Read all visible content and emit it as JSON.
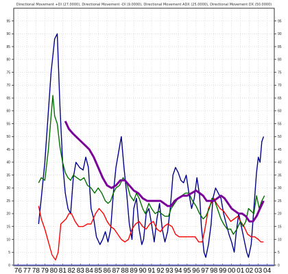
{
  "chart_data": {
    "type": "line",
    "title": "Directional Movement +DI (27.0000), Directional Movement -DI (9.0000), Directional Movement ADX (25.0000), Directional Movement DX (50.0000)",
    "x_ticks": [
      "76",
      "77",
      "78",
      "79",
      "80",
      "81",
      "82",
      "83",
      "84",
      "85",
      "86",
      "87",
      "88",
      "89",
      "90",
      "91",
      "92",
      "93",
      "94",
      "95",
      "96",
      "97",
      "98",
      "99",
      "00",
      "01",
      "02",
      "03",
      "04"
    ],
    "y_ticks": [
      0,
      5,
      10,
      15,
      20,
      25,
      30,
      35,
      40,
      45,
      50,
      55,
      60,
      65,
      70,
      75,
      80,
      85,
      90,
      95
    ],
    "ylim": [
      0,
      97
    ],
    "xlim": [
      1975.5,
      2004.8
    ],
    "grid": true,
    "series": [
      {
        "color": "#00008b",
        "points": [
          [
            1978.3,
            16
          ],
          [
            1978.6,
            26
          ],
          [
            1979.0,
            40
          ],
          [
            1979.4,
            60
          ],
          [
            1979.7,
            75
          ],
          [
            1980.1,
            88
          ],
          [
            1980.4,
            90
          ],
          [
            1980.7,
            62
          ],
          [
            1981.0,
            40
          ],
          [
            1981.3,
            28
          ],
          [
            1981.6,
            22
          ],
          [
            1981.9,
            20
          ],
          [
            1982.2,
            34
          ],
          [
            1982.5,
            40
          ],
          [
            1982.9,
            38
          ],
          [
            1983.3,
            37
          ],
          [
            1983.6,
            42
          ],
          [
            1983.9,
            38
          ],
          [
            1984.2,
            22
          ],
          [
            1984.5,
            18
          ],
          [
            1984.8,
            11
          ],
          [
            1985.2,
            8
          ],
          [
            1985.5,
            10
          ],
          [
            1985.8,
            13
          ],
          [
            1986.1,
            9
          ],
          [
            1986.4,
            14
          ],
          [
            1986.7,
            28
          ],
          [
            1987.0,
            38
          ],
          [
            1987.3,
            44
          ],
          [
            1987.6,
            50
          ],
          [
            1987.9,
            38
          ],
          [
            1988.2,
            28
          ],
          [
            1988.5,
            16
          ],
          [
            1988.8,
            10
          ],
          [
            1989.0,
            22
          ],
          [
            1989.3,
            26
          ],
          [
            1989.6,
            14
          ],
          [
            1989.9,
            8
          ],
          [
            1990.1,
            10
          ],
          [
            1990.4,
            20
          ],
          [
            1990.7,
            22
          ],
          [
            1991.0,
            16
          ],
          [
            1991.3,
            9
          ],
          [
            1991.6,
            18
          ],
          [
            1991.9,
            24
          ],
          [
            1992.2,
            14
          ],
          [
            1992.5,
            9
          ],
          [
            1992.8,
            13
          ],
          [
            1993.1,
            22
          ],
          [
            1993.4,
            35
          ],
          [
            1993.7,
            38
          ],
          [
            1994.0,
            36
          ],
          [
            1994.3,
            33
          ],
          [
            1994.6,
            32
          ],
          [
            1994.9,
            35
          ],
          [
            1995.2,
            28
          ],
          [
            1995.5,
            22
          ],
          [
            1995.8,
            26
          ],
          [
            1996.1,
            34
          ],
          [
            1996.4,
            27
          ],
          [
            1996.6,
            15
          ],
          [
            1996.9,
            5
          ],
          [
            1997.1,
            3
          ],
          [
            1997.4,
            8
          ],
          [
            1997.7,
            16
          ],
          [
            1997.9,
            26
          ],
          [
            1998.2,
            30
          ],
          [
            1998.5,
            28
          ],
          [
            1998.8,
            26
          ],
          [
            1999.1,
            20
          ],
          [
            1999.4,
            16
          ],
          [
            1999.7,
            12
          ],
          [
            2000.0,
            9
          ],
          [
            2000.3,
            5
          ],
          [
            2000.5,
            12
          ],
          [
            2000.8,
            20
          ],
          [
            2001.1,
            15
          ],
          [
            2001.4,
            10
          ],
          [
            2001.7,
            5
          ],
          [
            2001.9,
            3
          ],
          [
            2002.2,
            8
          ],
          [
            2002.5,
            22
          ],
          [
            2002.8,
            36
          ],
          [
            2003.0,
            42
          ],
          [
            2003.2,
            40
          ],
          [
            2003.4,
            48
          ],
          [
            2003.6,
            50
          ]
        ]
      },
      {
        "color": "#ff0000",
        "points": [
          [
            1978.3,
            23
          ],
          [
            1978.6,
            18
          ],
          [
            1979.0,
            14
          ],
          [
            1979.4,
            9
          ],
          [
            1979.8,
            4
          ],
          [
            1980.2,
            2
          ],
          [
            1980.5,
            5
          ],
          [
            1980.8,
            16
          ],
          [
            1981.1,
            17
          ],
          [
            1981.4,
            18
          ],
          [
            1981.7,
            20
          ],
          [
            1982.0,
            20
          ],
          [
            1982.4,
            17
          ],
          [
            1982.8,
            15
          ],
          [
            1983.3,
            15
          ],
          [
            1983.8,
            16
          ],
          [
            1984.2,
            16
          ],
          [
            1984.7,
            20
          ],
          [
            1985.1,
            22
          ],
          [
            1985.6,
            20
          ],
          [
            1986.0,
            17
          ],
          [
            1986.4,
            15
          ],
          [
            1986.8,
            14
          ],
          [
            1987.2,
            12
          ],
          [
            1987.6,
            10
          ],
          [
            1988.0,
            9
          ],
          [
            1988.4,
            10
          ],
          [
            1988.8,
            14
          ],
          [
            1989.2,
            16
          ],
          [
            1989.6,
            17
          ],
          [
            1990.0,
            15
          ],
          [
            1990.4,
            14
          ],
          [
            1990.8,
            16
          ],
          [
            1991.2,
            17
          ],
          [
            1991.6,
            14
          ],
          [
            1992.0,
            13
          ],
          [
            1992.4,
            15
          ],
          [
            1992.8,
            16
          ],
          [
            1993.3,
            15
          ],
          [
            1993.7,
            12
          ],
          [
            1994.1,
            11
          ],
          [
            1994.6,
            11
          ],
          [
            1995.0,
            11
          ],
          [
            1995.5,
            11
          ],
          [
            1995.9,
            11
          ],
          [
            1996.3,
            9
          ],
          [
            1996.7,
            9
          ],
          [
            1997.0,
            14
          ],
          [
            1997.4,
            22
          ],
          [
            1997.7,
            24
          ],
          [
            1998.0,
            26
          ],
          [
            1998.3,
            24
          ],
          [
            1998.7,
            22
          ],
          [
            1999.1,
            21
          ],
          [
            1999.5,
            19
          ],
          [
            1999.9,
            17
          ],
          [
            2000.3,
            18
          ],
          [
            2000.7,
            19
          ],
          [
            2001.0,
            17
          ],
          [
            2001.4,
            15
          ],
          [
            2001.8,
            12
          ],
          [
            2002.2,
            11
          ],
          [
            2002.6,
            11
          ],
          [
            2003.0,
            10
          ],
          [
            2003.3,
            9
          ],
          [
            2003.6,
            9
          ]
        ]
      },
      {
        "color": "#007000",
        "points": [
          [
            1978.3,
            32
          ],
          [
            1978.6,
            34
          ],
          [
            1979.0,
            33
          ],
          [
            1979.4,
            45
          ],
          [
            1979.7,
            58
          ],
          [
            1979.9,
            66
          ],
          [
            1980.1,
            58
          ],
          [
            1980.4,
            55
          ],
          [
            1980.7,
            46
          ],
          [
            1981.0,
            40
          ],
          [
            1981.3,
            36
          ],
          [
            1981.6,
            34
          ],
          [
            1981.9,
            33
          ],
          [
            1982.2,
            35
          ],
          [
            1982.6,
            34
          ],
          [
            1983.0,
            33
          ],
          [
            1983.4,
            34
          ],
          [
            1983.8,
            31
          ],
          [
            1984.2,
            30
          ],
          [
            1984.6,
            28
          ],
          [
            1985.0,
            30
          ],
          [
            1985.4,
            28
          ],
          [
            1985.8,
            25
          ],
          [
            1986.1,
            24
          ],
          [
            1986.4,
            25
          ],
          [
            1986.7,
            28
          ],
          [
            1987.0,
            30
          ],
          [
            1987.4,
            31
          ],
          [
            1987.8,
            34
          ],
          [
            1988.2,
            32
          ],
          [
            1988.6,
            27
          ],
          [
            1989.0,
            25
          ],
          [
            1989.3,
            28
          ],
          [
            1989.6,
            26
          ],
          [
            1990.0,
            22
          ],
          [
            1990.3,
            20
          ],
          [
            1990.7,
            24
          ],
          [
            1991.0,
            22
          ],
          [
            1991.4,
            20
          ],
          [
            1991.8,
            21
          ],
          [
            1992.1,
            20
          ],
          [
            1992.5,
            19
          ],
          [
            1992.9,
            19
          ],
          [
            1993.2,
            22
          ],
          [
            1993.6,
            24
          ],
          [
            1994.0,
            26
          ],
          [
            1994.4,
            27
          ],
          [
            1994.8,
            28
          ],
          [
            1995.2,
            28
          ],
          [
            1995.6,
            25
          ],
          [
            1996.0,
            23
          ],
          [
            1996.4,
            20
          ],
          [
            1996.8,
            18
          ],
          [
            1997.1,
            19
          ],
          [
            1997.5,
            22
          ],
          [
            1997.8,
            26
          ],
          [
            1998.1,
            25
          ],
          [
            1998.4,
            22
          ],
          [
            1998.8,
            18
          ],
          [
            1999.1,
            16
          ],
          [
            1999.5,
            14
          ],
          [
            1999.9,
            14
          ],
          [
            2000.2,
            12
          ],
          [
            2000.6,
            14
          ],
          [
            2001.0,
            17
          ],
          [
            2001.3,
            15
          ],
          [
            2001.6,
            17
          ],
          [
            2001.9,
            22
          ],
          [
            2002.2,
            21
          ],
          [
            2002.5,
            20
          ],
          [
            2002.8,
            27
          ],
          [
            2003.1,
            22
          ],
          [
            2003.4,
            25
          ],
          [
            2003.7,
            27
          ]
        ]
      },
      {
        "color": "#7b0099",
        "points": [
          [
            1981.3,
            56
          ],
          [
            1981.7,
            53
          ],
          [
            1982.2,
            51
          ],
          [
            1982.8,
            49
          ],
          [
            1983.4,
            47
          ],
          [
            1984.0,
            45
          ],
          [
            1984.5,
            42
          ],
          [
            1985.0,
            38
          ],
          [
            1985.5,
            34
          ],
          [
            1986.0,
            31
          ],
          [
            1986.5,
            30
          ],
          [
            1987.0,
            31
          ],
          [
            1987.5,
            33
          ],
          [
            1988.0,
            33
          ],
          [
            1988.5,
            31
          ],
          [
            1989.0,
            29
          ],
          [
            1989.5,
            28
          ],
          [
            1990.0,
            26
          ],
          [
            1990.5,
            25
          ],
          [
            1991.0,
            25
          ],
          [
            1991.5,
            25
          ],
          [
            1992.0,
            25
          ],
          [
            1992.4,
            24
          ],
          [
            1992.8,
            23
          ],
          [
            1993.2,
            23
          ],
          [
            1993.6,
            25
          ],
          [
            1994.0,
            26
          ],
          [
            1994.5,
            27
          ],
          [
            1995.0,
            27
          ],
          [
            1995.5,
            28
          ],
          [
            1996.0,
            29
          ],
          [
            1996.4,
            28
          ],
          [
            1996.8,
            27
          ],
          [
            1997.2,
            25
          ],
          [
            1997.6,
            25
          ],
          [
            1998.0,
            25
          ],
          [
            1998.4,
            26
          ],
          [
            1998.8,
            27
          ],
          [
            1999.2,
            26
          ],
          [
            1999.6,
            24
          ],
          [
            2000.0,
            22
          ],
          [
            2000.4,
            21
          ],
          [
            2000.8,
            20
          ],
          [
            2001.2,
            20
          ],
          [
            2001.6,
            19
          ],
          [
            2002.0,
            17
          ],
          [
            2002.4,
            17
          ],
          [
            2002.8,
            19
          ],
          [
            2003.2,
            22
          ],
          [
            2003.6,
            25
          ]
        ]
      }
    ]
  }
}
